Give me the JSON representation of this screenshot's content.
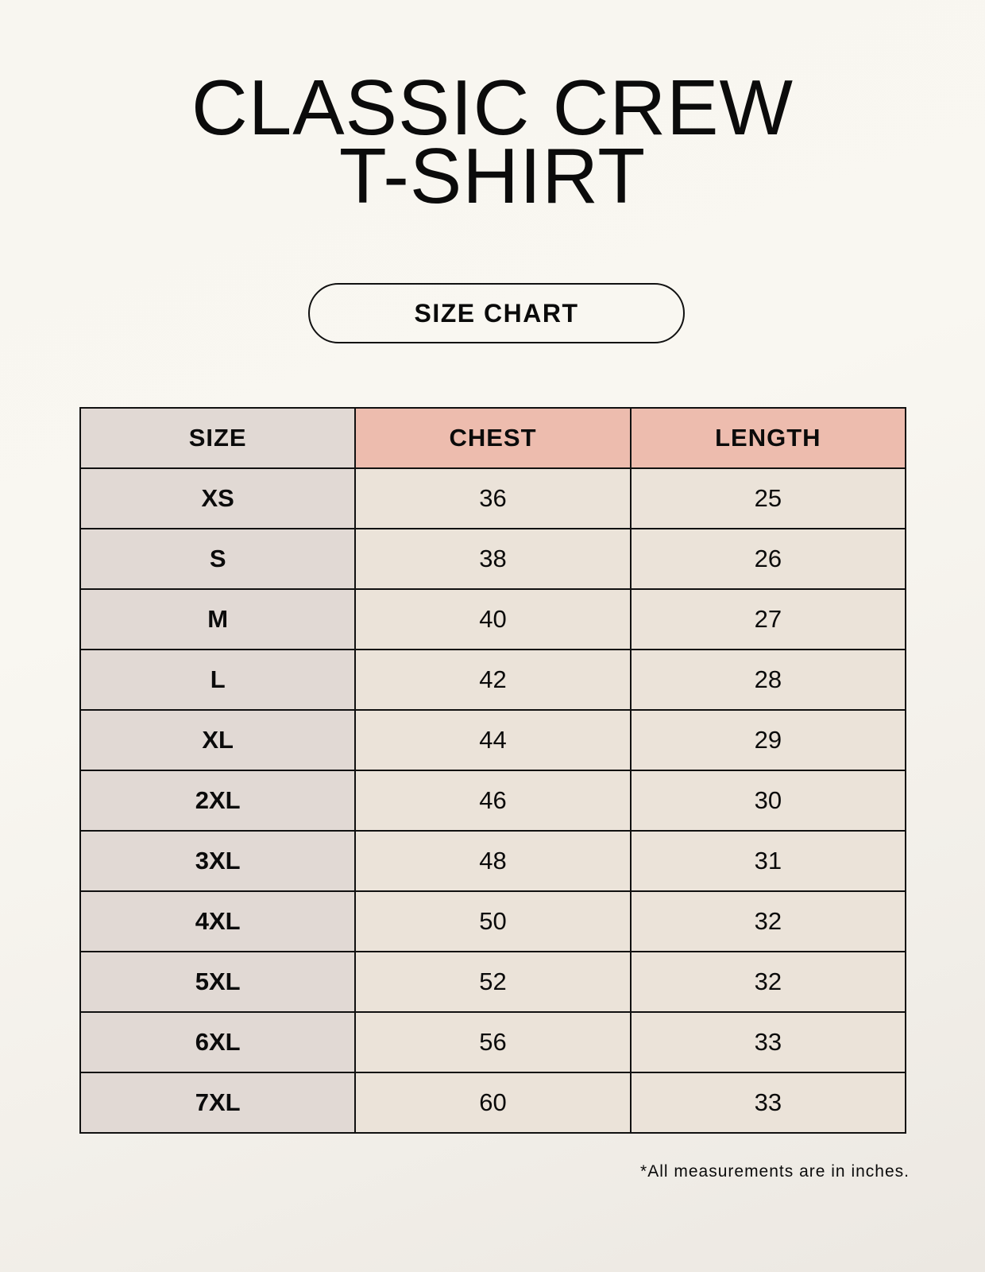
{
  "title_line1": "CLASSIC CREW",
  "title_line2": "T-SHIRT",
  "badge": "SIZE CHART",
  "table": {
    "headers": [
      "SIZE",
      "CHEST",
      "LENGTH"
    ],
    "rows": [
      [
        "XS",
        "36",
        "25"
      ],
      [
        "S",
        "38",
        "26"
      ],
      [
        "M",
        "40",
        "27"
      ],
      [
        "L",
        "42",
        "28"
      ],
      [
        "XL",
        "44",
        "29"
      ],
      [
        "2XL",
        "46",
        "30"
      ],
      [
        "3XL",
        "48",
        "31"
      ],
      [
        "4XL",
        "50",
        "32"
      ],
      [
        "5XL",
        "52",
        "32"
      ],
      [
        "6XL",
        "56",
        "33"
      ],
      [
        "7XL",
        "60",
        "33"
      ]
    ]
  },
  "footnote": "*All measurements are in inches.",
  "colors": {
    "header_accent": "#edbcae",
    "size_column": "#e1d9d4",
    "value_cells": "#ebe3d9"
  }
}
